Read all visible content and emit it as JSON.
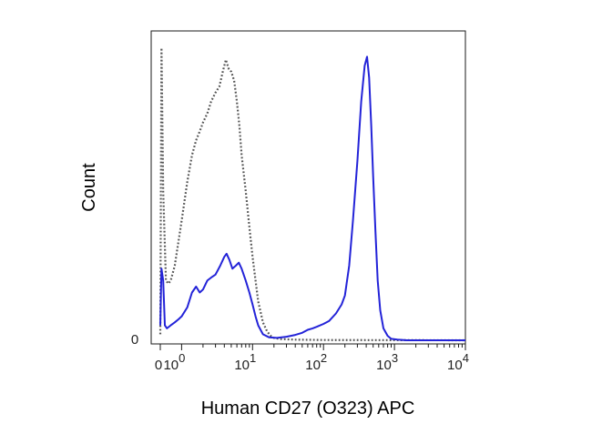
{
  "chart_data": {
    "type": "line",
    "title": "",
    "xlabel": "Human CD27 (O323) APC",
    "ylabel": "Count",
    "x_scale": "log",
    "xlim": [
      0.5,
      10000
    ],
    "ylim": [
      0,
      1
    ],
    "grid": false,
    "legend": "none",
    "x_tick_labels": [
      {
        "value": 0.5,
        "base": "0",
        "exp": ""
      },
      {
        "value": 1,
        "base": "10",
        "exp": "0"
      },
      {
        "value": 10,
        "base": "10",
        "exp": "1"
      },
      {
        "value": 100,
        "base": "10",
        "exp": "2"
      },
      {
        "value": 1000,
        "base": "10",
        "exp": "3"
      },
      {
        "value": 10000,
        "base": "10",
        "exp": "4"
      }
    ],
    "y_tick_labels": [
      {
        "value": 0,
        "label": "0"
      }
    ],
    "series": [
      {
        "style": "dotted",
        "color": "#555555",
        "points": [
          [
            0.5,
            0.02
          ],
          [
            0.52,
            0.98
          ],
          [
            0.55,
            0.5
          ],
          [
            0.6,
            0.2
          ],
          [
            0.65,
            0.19
          ],
          [
            0.7,
            0.2
          ],
          [
            0.8,
            0.25
          ],
          [
            0.9,
            0.33
          ],
          [
            1.0,
            0.4
          ],
          [
            1.2,
            0.53
          ],
          [
            1.4,
            0.62
          ],
          [
            1.6,
            0.67
          ],
          [
            1.8,
            0.7
          ],
          [
            2.0,
            0.73
          ],
          [
            2.3,
            0.76
          ],
          [
            2.6,
            0.8
          ],
          [
            3.0,
            0.83
          ],
          [
            3.4,
            0.85
          ],
          [
            3.8,
            0.9
          ],
          [
            4.2,
            0.94
          ],
          [
            4.6,
            0.91
          ],
          [
            5.0,
            0.9
          ],
          [
            5.5,
            0.87
          ],
          [
            6.0,
            0.8
          ],
          [
            6.5,
            0.72
          ],
          [
            7.0,
            0.62
          ],
          [
            8.0,
            0.5
          ],
          [
            9.0,
            0.38
          ],
          [
            10.0,
            0.28
          ],
          [
            11.0,
            0.2
          ],
          [
            12.0,
            0.13
          ],
          [
            14.0,
            0.06
          ],
          [
            16.0,
            0.03
          ],
          [
            18.0,
            0.015
          ],
          [
            20.0,
            0.008
          ],
          [
            25.0,
            0.004
          ],
          [
            40.0,
            0.002
          ],
          [
            100.0,
            0.001
          ],
          [
            10000.0,
            0.0
          ]
        ]
      },
      {
        "style": "solid",
        "color": "#2323d8",
        "points": [
          [
            0.5,
            0.05
          ],
          [
            0.52,
            0.24
          ],
          [
            0.55,
            0.2
          ],
          [
            0.58,
            0.05
          ],
          [
            0.62,
            0.04
          ],
          [
            0.7,
            0.05
          ],
          [
            0.8,
            0.06
          ],
          [
            0.9,
            0.07
          ],
          [
            1.0,
            0.08
          ],
          [
            1.2,
            0.11
          ],
          [
            1.4,
            0.16
          ],
          [
            1.6,
            0.18
          ],
          [
            1.8,
            0.16
          ],
          [
            2.0,
            0.17
          ],
          [
            2.3,
            0.2
          ],
          [
            2.6,
            0.21
          ],
          [
            3.0,
            0.22
          ],
          [
            3.5,
            0.25
          ],
          [
            4.0,
            0.28
          ],
          [
            4.3,
            0.29
          ],
          [
            4.7,
            0.27
          ],
          [
            5.2,
            0.24
          ],
          [
            5.8,
            0.25
          ],
          [
            6.4,
            0.26
          ],
          [
            7.0,
            0.24
          ],
          [
            8.0,
            0.2
          ],
          [
            9.0,
            0.16
          ],
          [
            10.0,
            0.12
          ],
          [
            11.0,
            0.08
          ],
          [
            12.0,
            0.05
          ],
          [
            14.0,
            0.02
          ],
          [
            17.0,
            0.01
          ],
          [
            22.0,
            0.008
          ],
          [
            30.0,
            0.012
          ],
          [
            40.0,
            0.018
          ],
          [
            50.0,
            0.025
          ],
          [
            60.0,
            0.035
          ],
          [
            70.0,
            0.04
          ],
          [
            80.0,
            0.045
          ],
          [
            100.0,
            0.055
          ],
          [
            120.0,
            0.065
          ],
          [
            150.0,
            0.09
          ],
          [
            180.0,
            0.12
          ],
          [
            200.0,
            0.15
          ],
          [
            230.0,
            0.25
          ],
          [
            260.0,
            0.4
          ],
          [
            300.0,
            0.6
          ],
          [
            340.0,
            0.8
          ],
          [
            380.0,
            0.92
          ],
          [
            410.0,
            0.95
          ],
          [
            440.0,
            0.88
          ],
          [
            470.0,
            0.72
          ],
          [
            500.0,
            0.55
          ],
          [
            540.0,
            0.36
          ],
          [
            580.0,
            0.2
          ],
          [
            630.0,
            0.1
          ],
          [
            700.0,
            0.04
          ],
          [
            800.0,
            0.015
          ],
          [
            900.0,
            0.005
          ],
          [
            1100.0,
            0.002
          ],
          [
            1500.0,
            0.0
          ],
          [
            10000.0,
            0.0
          ]
        ]
      }
    ]
  }
}
